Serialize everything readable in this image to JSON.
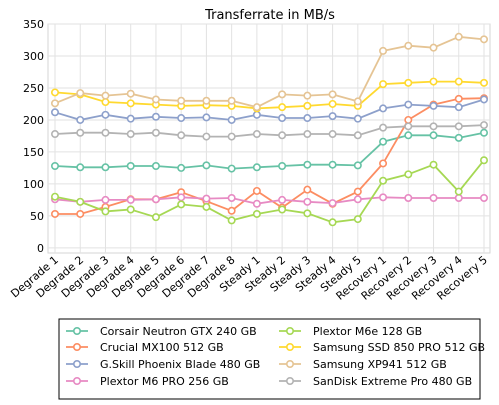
{
  "chart_data": {
    "type": "line",
    "title": "Transferrate in MB/s",
    "xlabel": "",
    "ylabel": "",
    "ylim": [
      -8,
      350
    ],
    "yticks": [
      0,
      50,
      100,
      150,
      200,
      250,
      300,
      350
    ],
    "grid": true,
    "legend_position": "bottom",
    "categories": [
      "Degrade 1",
      "Degrade 2",
      "Degrade 3",
      "Degrade 4",
      "Degrade 5",
      "Degrade 6",
      "Degrade 7",
      "Degrade 8",
      "Steady 1",
      "Steady 2",
      "Steady 3",
      "Steady 4",
      "Steady 5",
      "Recovery 1",
      "Recovery 2",
      "Recovery 3",
      "Recovery 4",
      "Recovery 5"
    ],
    "series": [
      {
        "name": "Corsair Neutron GTX 240 GB",
        "color": "#66c2a5",
        "values": [
          128,
          126,
          126,
          128,
          128,
          125,
          129,
          124,
          126,
          128,
          130,
          130,
          129,
          166,
          176,
          176,
          172,
          180
        ]
      },
      {
        "name": "Crucial MX100 512 GB",
        "color": "#fc8d62",
        "values": [
          53,
          53,
          64,
          76,
          76,
          87,
          73,
          58,
          89,
          63,
          91,
          69,
          88,
          132,
          200,
          224,
          233,
          234
        ]
      },
      {
        "name": "G.Skill Phoenix Blade 480 GB",
        "color": "#8da0cb",
        "values": [
          212,
          200,
          208,
          202,
          205,
          203,
          204,
          200,
          208,
          203,
          203,
          206,
          202,
          218,
          224,
          222,
          220,
          232
        ]
      },
      {
        "name": "Plextor M6 PRO 256 GB",
        "color": "#e78ac3",
        "values": [
          76,
          72,
          75,
          75,
          76,
          79,
          77,
          78,
          69,
          75,
          72,
          70,
          76,
          79,
          78,
          78,
          78,
          78
        ]
      },
      {
        "name": "Plextor M6e 128 GB",
        "color": "#a6d854",
        "values": [
          80,
          72,
          57,
          60,
          48,
          68,
          64,
          43,
          53,
          60,
          54,
          40,
          45,
          105,
          115,
          130,
          88,
          137
        ]
      },
      {
        "name": "Samsung SSD 850 PRO 512 GB",
        "color": "#ffd92f",
        "values": [
          243,
          240,
          228,
          226,
          224,
          222,
          223,
          222,
          218,
          220,
          222,
          225,
          222,
          256,
          258,
          260,
          260,
          258
        ]
      },
      {
        "name": "Samsung XP941 512 GB",
        "color": "#e5c494",
        "values": [
          226,
          242,
          238,
          241,
          232,
          230,
          230,
          230,
          220,
          240,
          238,
          240,
          229,
          308,
          316,
          313,
          330,
          326
        ]
      },
      {
        "name": "SanDisk Extreme Pro 480 GB",
        "color": "#b3b3b3",
        "values": [
          178,
          180,
          180,
          178,
          180,
          176,
          174,
          174,
          178,
          176,
          178,
          178,
          176,
          188,
          190,
          190,
          190,
          192
        ]
      }
    ]
  }
}
